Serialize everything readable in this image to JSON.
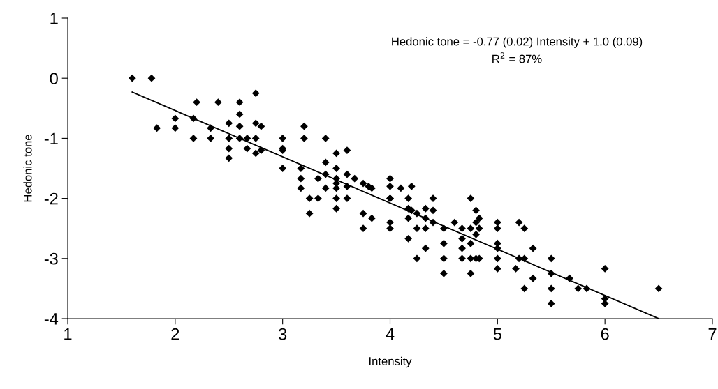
{
  "chart_data": {
    "type": "scatter",
    "xlabel": "Intensity",
    "ylabel": "Hedonic tone",
    "xlim": [
      1,
      7
    ],
    "ylim": [
      -4,
      1
    ],
    "xticks": [
      1,
      2,
      3,
      4,
      5,
      6,
      7
    ],
    "yticks": [
      -4,
      -3,
      -2,
      -1,
      0,
      1
    ],
    "grid": false,
    "legend": false,
    "marker": "diamond",
    "annotations": [
      "Hedonic tone = -0.77 (0.02) Intensity + 1.0 (0.09)",
      "R$^{2}$ = 87%"
    ],
    "series": [
      {
        "color": "#000000",
        "x": [
          1.6,
          1.78,
          1.83,
          2.0,
          2.0,
          2.17,
          2.17,
          2.2,
          2.33,
          2.33,
          2.4,
          2.5,
          2.5,
          2.5,
          2.5,
          2.6,
          2.6,
          2.6,
          2.6,
          2.67,
          2.67,
          2.75,
          2.75,
          2.75,
          2.75,
          2.8,
          2.8,
          3,
          3,
          3,
          3,
          3.17,
          3.17,
          3.17,
          3.2,
          3.2,
          3.25,
          3.25,
          3.33,
          3.33,
          3.4,
          3.4,
          3.4,
          3.4,
          3.5,
          3.5,
          3.5,
          3.5,
          3.5,
          3.5,
          3.5,
          3.6,
          3.6,
          3.6,
          3.6,
          3.67,
          3.75,
          3.75,
          3.75,
          3.8,
          3.83,
          3.83,
          4,
          4,
          4,
          4,
          4,
          4,
          4.1,
          4.17,
          4.17,
          4.17,
          4.17,
          4.2,
          4.2,
          4.25,
          4.25,
          4.25,
          4.33,
          4.33,
          4.33,
          4.33,
          4.4,
          4.4,
          4.4,
          4.5,
          4.5,
          4.5,
          4.5,
          4.6,
          4.67,
          4.67,
          4.67,
          4.67,
          4.75,
          4.75,
          4.75,
          4.75,
          4.75,
          4.8,
          4.8,
          4.8,
          4.8,
          4.83,
          4.83,
          4.83,
          5,
          5,
          5,
          5,
          5,
          5,
          5.17,
          5.2,
          5.2,
          5.25,
          5.25,
          5.25,
          5.33,
          5.33,
          5.5,
          5.5,
          5.5,
          5.5,
          5.67,
          5.75,
          5.83,
          6,
          6,
          6,
          6.5
        ],
        "values": [
          0,
          0,
          -0.83,
          -0.67,
          -0.83,
          -0.67,
          -1.0,
          -0.4,
          -0.83,
          -1.0,
          -0.4,
          -0.75,
          -1.0,
          -1.17,
          -1.33,
          -0.4,
          -0.6,
          -0.8,
          -1.0,
          -1.0,
          -1.17,
          -0.25,
          -0.75,
          -1.0,
          -1.25,
          -0.8,
          -1.2,
          -1.0,
          -1.2,
          -1.17,
          -1.5,
          -1.5,
          -1.67,
          -1.83,
          -0.8,
          -1.0,
          -2.0,
          -2.25,
          -1.67,
          -2.0,
          -1.0,
          -1.4,
          -1.6,
          -1.83,
          -1.25,
          -1.5,
          -1.67,
          -1.75,
          -1.83,
          -2.0,
          -2.17,
          -1.2,
          -1.6,
          -1.8,
          -2.0,
          -1.67,
          -1.75,
          -2.25,
          -2.5,
          -1.8,
          -1.83,
          -2.33,
          -1.67,
          -1.8,
          -2.0,
          -2.0,
          -2.4,
          -2.5,
          -1.83,
          -2.0,
          -2.17,
          -2.33,
          -2.67,
          -1.8,
          -2.2,
          -2.25,
          -2.5,
          -3.0,
          -2.17,
          -2.33,
          -2.5,
          -2.83,
          -2.0,
          -2.2,
          -2.4,
          -2.5,
          -2.75,
          -3.0,
          -3.25,
          -2.4,
          -2.5,
          -2.67,
          -2.83,
          -3.0,
          -2.0,
          -2.5,
          -2.75,
          -3.0,
          -3.25,
          -2.2,
          -2.4,
          -2.6,
          -3.0,
          -2.33,
          -2.5,
          -3.0,
          -2.4,
          -2.5,
          -2.75,
          -2.83,
          -3.0,
          -3.17,
          -3.17,
          -2.4,
          -3.0,
          -2.5,
          -3.0,
          -3.5,
          -2.83,
          -3.33,
          -3.0,
          -3.25,
          -3.5,
          -3.75,
          -3.33,
          -3.5,
          -3.5,
          -3.17,
          -3.67,
          -3.75,
          -3.5
        ]
      },
      {
        "type": "line",
        "color": "#000000",
        "x": [
          1.6,
          6.5
        ],
        "values": [
          -0.23,
          -4.0
        ],
        "marker": "none",
        "line_style": "solid"
      }
    ]
  }
}
